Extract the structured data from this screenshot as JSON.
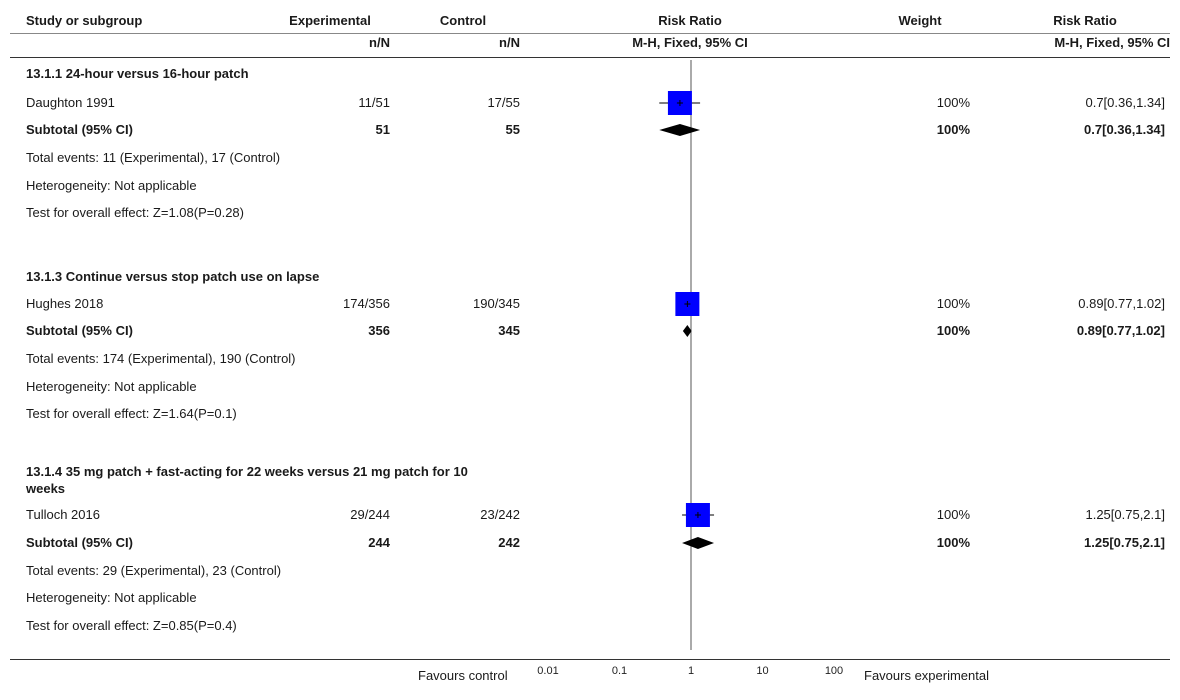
{
  "headers": {
    "study": "Study or subgroup",
    "exp": "Experimental",
    "exp_sub": "n/N",
    "ctl": "Control",
    "ctl_sub": "n/N",
    "rr": "Risk Ratio",
    "rr_sub": "M-H, Fixed, 95% CI",
    "weight": "Weight",
    "rr2": "Risk Ratio",
    "rr2_sub": "M-H, Fixed, 95% CI"
  },
  "footer": {
    "favours_left": "Favours control",
    "favours_right": "Favours experimental"
  },
  "chart_data": {
    "type": "forest",
    "x_scale": "log",
    "xlim": [
      0.01,
      100
    ],
    "ticks": [
      "0.01",
      "0.1",
      "1",
      "10",
      "100"
    ],
    "tick_values": [
      0.01,
      0.1,
      1,
      10,
      100
    ],
    "reference_line": 1,
    "subgroups": [
      {
        "title": "13.1.1 24-hour versus 16-hour patch",
        "studies": [
          {
            "name": "Daughton 1991",
            "exp": "11/51",
            "ctl": "17/55",
            "weight": "100%",
            "ci_text": "0.7[0.36,1.34]",
            "rr": 0.7,
            "lo": 0.36,
            "hi": 1.34
          }
        ],
        "subtotal": {
          "label": "Subtotal (95% CI)",
          "exp": "51",
          "ctl": "55",
          "weight": "100%",
          "ci_text": "0.7[0.36,1.34]",
          "rr": 0.7,
          "lo": 0.36,
          "hi": 1.34
        },
        "notes": [
          "Total events: 11 (Experimental), 17 (Control)",
          "Heterogeneity: Not applicable",
          "Test for overall effect: Z=1.08(P=0.28)"
        ]
      },
      {
        "title": "13.1.3 Continue versus stop patch use on lapse",
        "studies": [
          {
            "name": "Hughes 2018",
            "exp": "174/356",
            "ctl": "190/345",
            "weight": "100%",
            "ci_text": "0.89[0.77,1.02]",
            "rr": 0.89,
            "lo": 0.77,
            "hi": 1.02
          }
        ],
        "subtotal": {
          "label": "Subtotal (95% CI)",
          "exp": "356",
          "ctl": "345",
          "weight": "100%",
          "ci_text": "0.89[0.77,1.02]",
          "rr": 0.89,
          "lo": 0.77,
          "hi": 1.02
        },
        "notes": [
          "Total events: 174 (Experimental), 190 (Control)",
          "Heterogeneity: Not applicable",
          "Test for overall effect: Z=1.64(P=0.1)"
        ]
      },
      {
        "title": "13.1.4 35 mg patch + fast-acting for 22 weeks versus 21 mg patch for 10",
        "title_line2": "weeks",
        "studies": [
          {
            "name": "Tulloch 2016",
            "exp": "29/244",
            "ctl": "23/242",
            "weight": "100%",
            "ci_text": "1.25[0.75,2.1]",
            "rr": 1.25,
            "lo": 0.75,
            "hi": 2.1
          }
        ],
        "subtotal": {
          "label": "Subtotal (95% CI)",
          "exp": "244",
          "ctl": "242",
          "weight": "100%",
          "ci_text": "1.25[0.75,2.1]",
          "rr": 1.25,
          "lo": 0.75,
          "hi": 2.1
        },
        "notes": [
          "Total events: 29 (Experimental), 23 (Control)",
          "Heterogeneity: Not applicable",
          "Test for overall effect: Z=0.85(P=0.4)"
        ]
      }
    ],
    "colors": {
      "box": "#0000ff",
      "diamond": "#000000",
      "axis": "#333333"
    }
  }
}
